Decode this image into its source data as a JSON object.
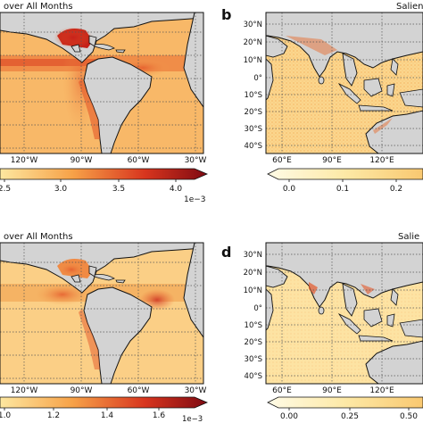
{
  "panels": {
    "a": {
      "label": "",
      "title_fragment": "over All Months",
      "lon_ticks": [
        "120°W",
        "90°W",
        "60°W",
        "30°W"
      ],
      "colorbar": {
        "ticks": [
          "2.5",
          "3.0",
          "3.5",
          "4.0"
        ],
        "exponent": "1e−3"
      },
      "colors": {
        "low": "#fff3c6",
        "mid": "#f39a4c",
        "high": "#c41f17"
      }
    },
    "b": {
      "label": "b",
      "title_fragment": "Salien",
      "lat_ticks": [
        "30°N",
        "20°N",
        "10°N",
        "0°",
        "10°S",
        "20°S",
        "30°S",
        "40°S"
      ],
      "lon_ticks": [
        "60°E",
        "90°E",
        "120°E"
      ],
      "colorbar": {
        "ticks": [
          "0.0",
          "0.1",
          "0.2"
        ]
      }
    },
    "c": {
      "label": "",
      "title_fragment": "over All Months",
      "lon_ticks": [
        "120°W",
        "90°W",
        "60°W",
        "30°W"
      ],
      "colorbar": {
        "ticks": [
          "1.0",
          "1.2",
          "1.4",
          "1.6"
        ],
        "exponent": "1e−3"
      }
    },
    "d": {
      "label": "d",
      "title_fragment": "Salie",
      "lat_ticks": [
        "30°N",
        "20°N",
        "10°N",
        "0°",
        "10°S",
        "20°S",
        "30°S",
        "40°S"
      ],
      "lon_ticks": [
        "60°E",
        "90°E",
        "120°E"
      ],
      "colorbar": {
        "ticks": [
          "0.00",
          "0.25",
          "0.50"
        ]
      }
    }
  },
  "colors": {
    "land": "#d3d3d3",
    "ocean": "#fbd58a",
    "hot": "#d9361c",
    "cbar_dark": "#8e0c12"
  }
}
